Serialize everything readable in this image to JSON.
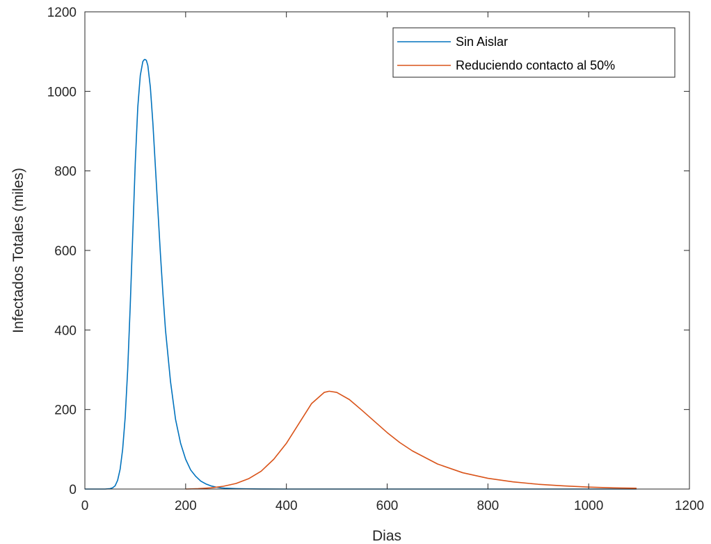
{
  "chart_data": {
    "type": "line",
    "xlabel": "Dias",
    "ylabel": "Infectados Totales (miles)",
    "xlim": [
      0,
      1200
    ],
    "ylim": [
      0,
      1200
    ],
    "xticks": [
      0,
      200,
      400,
      600,
      800,
      1000,
      1200
    ],
    "yticks": [
      0,
      200,
      400,
      600,
      800,
      1000,
      1200
    ],
    "xtick_labels": [
      "0",
      "200",
      "400",
      "600",
      "800",
      "1000",
      "1200"
    ],
    "ytick_labels": [
      "0",
      "200",
      "400",
      "600",
      "800",
      "1000",
      "1200"
    ],
    "grid": false,
    "box": true,
    "legend_position": "top-right",
    "series": [
      {
        "name": "Sin Aislar",
        "color": "#0072BD",
        "x": [
          0,
          40,
          50,
          55,
          60,
          65,
          70,
          75,
          80,
          85,
          90,
          95,
          100,
          105,
          110,
          115,
          118,
          120,
          122,
          125,
          130,
          135,
          140,
          145,
          150,
          155,
          160,
          170,
          180,
          190,
          200,
          210,
          220,
          230,
          240,
          250,
          260,
          270,
          280,
          300,
          320,
          350,
          400,
          500,
          600,
          700,
          800,
          900,
          1000,
          1095
        ],
        "y": [
          0,
          0,
          1,
          3,
          8,
          22,
          50,
          100,
          180,
          300,
          460,
          640,
          820,
          960,
          1040,
          1075,
          1080,
          1080,
          1078,
          1065,
          1010,
          920,
          810,
          700,
          590,
          490,
          400,
          270,
          175,
          115,
          75,
          48,
          32,
          20,
          13,
          8,
          5,
          3,
          2,
          1,
          0.5,
          0.2,
          0,
          0,
          0,
          0,
          0,
          0,
          0,
          0
        ]
      },
      {
        "name": "Reduciendo contacto al 50%",
        "color": "#D95319",
        "x": [
          200,
          225,
          250,
          275,
          300,
          325,
          350,
          375,
          400,
          425,
          450,
          475,
          485,
          500,
          525,
          550,
          575,
          600,
          625,
          650,
          700,
          750,
          800,
          850,
          900,
          950,
          1000,
          1050,
          1095
        ],
        "y": [
          0,
          1,
          3,
          7,
          14,
          26,
          45,
          75,
          115,
          165,
          215,
          243,
          246,
          243,
          225,
          198,
          170,
          142,
          117,
          96,
          63,
          41,
          27,
          18,
          12,
          8,
          5,
          3,
          2
        ]
      }
    ]
  }
}
